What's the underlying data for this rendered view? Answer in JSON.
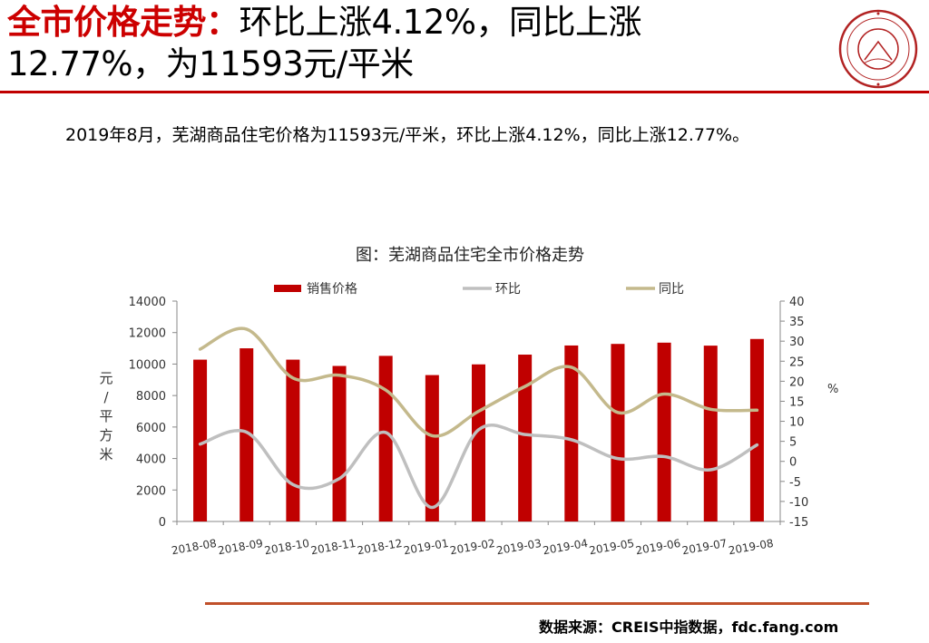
{
  "header": {
    "title_highlight": "全市价格走势：",
    "title_rest_line1": "环比上涨4.12%，同比上涨",
    "title_line2": "12.77%，为11593元/平米",
    "logo_icon": "china-index-academy-seal-icon",
    "accent_color": "#cc0000"
  },
  "summary": "2019年8月，芜湖商品住宅价格为11593元/平米，环比上涨4.12%，同比上涨12.77%。",
  "footer": {
    "source": "数据来源：CREIS中指数据，fdc.fang.com"
  },
  "chart_data": {
    "type": "bar",
    "title": "图：芜湖商品住宅全市价格走势",
    "categories": [
      "2018-08",
      "2018-09",
      "2018-10",
      "2018-11",
      "2018-12",
      "2019-01",
      "2019-02",
      "2019-03",
      "2019-04",
      "2019-05",
      "2019-06",
      "2019-07",
      "2019-08"
    ],
    "ylabel_left": "元/平方米",
    "ylabel_right": "%",
    "ylim_left": [
      0,
      14000
    ],
    "yticks_left": [
      0,
      2000,
      4000,
      6000,
      8000,
      10000,
      12000,
      14000
    ],
    "ylim_right": [
      -15,
      40
    ],
    "yticks_right": [
      -15,
      -10,
      -5,
      0,
      5,
      10,
      15,
      20,
      25,
      30,
      35,
      40
    ],
    "legend_position": "top",
    "grid": false,
    "series": [
      {
        "name": "销售价格",
        "type": "bar",
        "axis": "left",
        "color": "#c00000",
        "values": [
          10280,
          11000,
          10280,
          9880,
          10520,
          9300,
          9980,
          10600,
          11180,
          11280,
          11360,
          11170,
          11593
        ]
      },
      {
        "name": "环比",
        "type": "line",
        "axis": "right",
        "color": "#bfbfbf",
        "values": [
          4.3,
          7.3,
          -5.8,
          -4.3,
          7.2,
          -11.5,
          7.9,
          6.7,
          5.4,
          0.7,
          1.2,
          -2.1,
          4.12
        ]
      },
      {
        "name": "同比",
        "type": "line",
        "axis": "right",
        "color": "#c4b98c",
        "values": [
          28,
          33,
          20.8,
          21.5,
          17.8,
          6.4,
          12.5,
          18.7,
          23.5,
          12.2,
          16.8,
          13,
          12.77
        ]
      }
    ]
  }
}
